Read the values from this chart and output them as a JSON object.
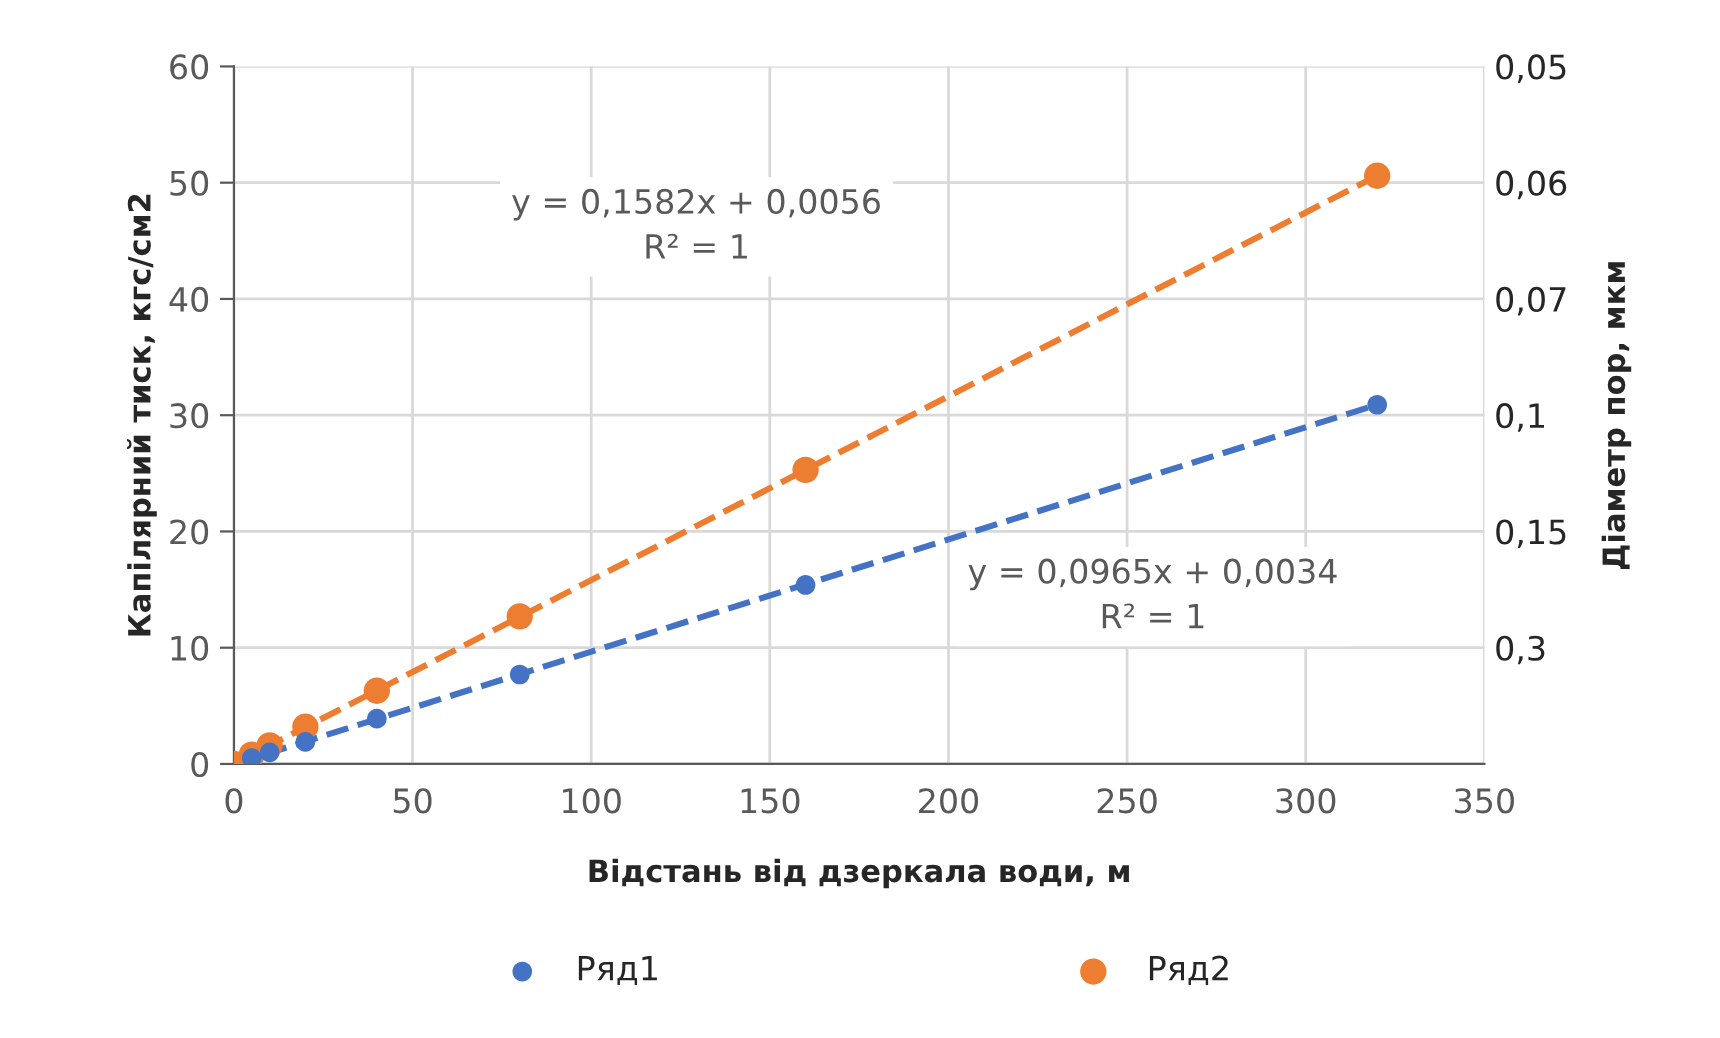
{
  "chart_data": {
    "type": "scatter",
    "xlabel": "Відстань від дзеркала води, м",
    "ylabel": "Капілярний тиск, кгс/см2",
    "y2label": "Діаметр пор, мкм",
    "series": [
      {
        "name": "Ряд1",
        "color": "#4472c4",
        "x": [
          5,
          10,
          20,
          40,
          80,
          160,
          320
        ],
        "values": [
          0.5,
          1,
          1.9,
          3.9,
          7.7,
          15.4,
          30.9
        ]
      },
      {
        "name": "Ряд2",
        "color": "#ed7d31",
        "x": [
          0,
          5,
          10,
          20,
          40,
          80,
          160,
          320
        ],
        "values": [
          0,
          0.8,
          1.6,
          3.2,
          6.3,
          12.7,
          25.3,
          50.6
        ]
      },
      {
        "type": "line",
        "marker": "none",
        "color": "#4472c4",
        "line_style": "dashed",
        "x": [
          0,
          320
        ],
        "values": [
          0,
          30.9
        ]
      },
      {
        "type": "line",
        "marker": "none",
        "color": "#ed7d31",
        "line_style": "dashed",
        "x": [
          0,
          320
        ],
        "values": [
          0,
          50.6
        ]
      }
    ],
    "annotations": [
      "y = 0,1582x + 0,0056\nR² = 1",
      "y = 0,0965x + 0,0034\nR² = 1"
    ],
    "xlim": [
      0,
      350
    ],
    "xticks": [
      0,
      50,
      100,
      150,
      200,
      250,
      300,
      350
    ],
    "ylim": [
      0,
      60
    ],
    "yticks": [
      0,
      10,
      20,
      30,
      40,
      50,
      60
    ],
    "y2_categories": [
      "0,05",
      "0,06",
      "0,07",
      "0,1",
      "0,15",
      "0,3",
      null
    ],
    "grid": true,
    "legend": "bottom",
    "marker": "circle"
  }
}
